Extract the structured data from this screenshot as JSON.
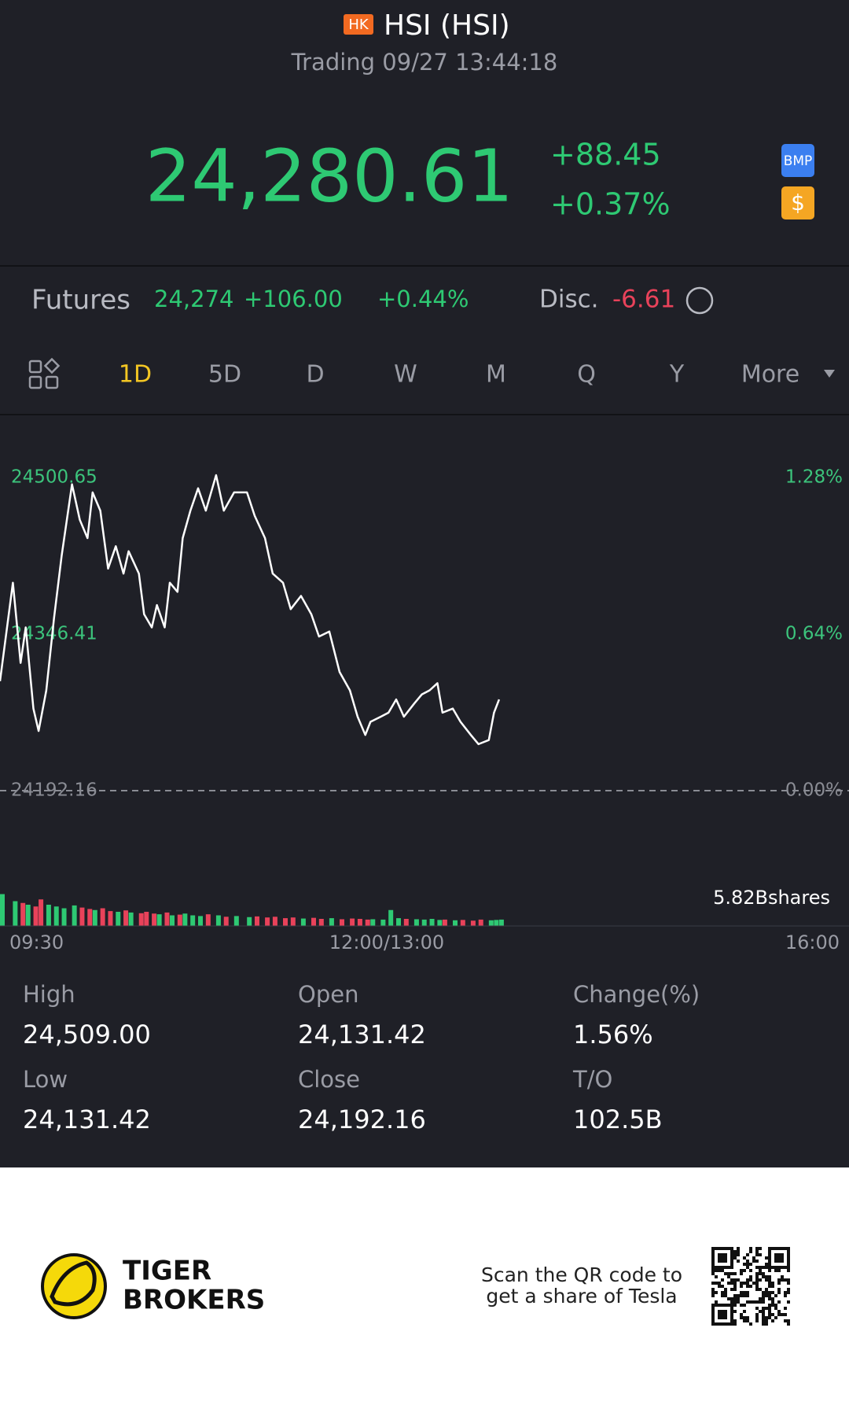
{
  "header": {
    "market": "HK",
    "title": "HSI (HSI)",
    "status": "Trading 09/27 13:44:18"
  },
  "quote": {
    "price": "24,280.61",
    "change": "+88.45",
    "change_pct": "+0.37%",
    "badge_1": "BMP",
    "badge_2": "$"
  },
  "futures": {
    "label": "Futures",
    "price": "24,274",
    "change": "+106.00",
    "change_pct": "+0.44%",
    "disc_label": "Disc.",
    "disc": "-6.61"
  },
  "tabs": {
    "items": [
      "1D",
      "5D",
      "D",
      "W",
      "M",
      "Q",
      "Y",
      "More"
    ],
    "selected": 0
  },
  "chart_data": {
    "type": "line",
    "color": "#ffffff",
    "x": [
      "09:30",
      "09:35",
      "09:38",
      "09:40",
      "09:43",
      "09:45",
      "09:48",
      "09:51",
      "09:54",
      "09:58",
      "10:01",
      "10:04",
      "10:06",
      "10:09",
      "10:12",
      "10:15",
      "10:18",
      "10:20",
      "10:24",
      "10:26",
      "10:29",
      "10:31",
      "10:34",
      "10:36",
      "10:39",
      "10:41",
      "10:44",
      "10:47",
      "10:50",
      "10:54",
      "10:57",
      "11:01",
      "11:06",
      "11:09",
      "11:13",
      "11:16",
      "11:20",
      "11:23",
      "11:27",
      "11:31",
      "11:34",
      "11:38",
      "11:42",
      "11:46",
      "11:49",
      "11:52",
      "11:54",
      "11:58",
      "13:01",
      "13:04",
      "13:07",
      "13:11",
      "13:14",
      "13:17",
      "13:20",
      "13:22",
      "13:26",
      "13:29",
      "13:33",
      "13:36",
      "13:40",
      "13:42",
      "13:44"
    ],
    "values": [
      24300,
      24397,
      24318,
      24353,
      24273,
      24251,
      24291,
      24362,
      24424,
      24494,
      24459,
      24441,
      24486,
      24468,
      24411,
      24433,
      24406,
      24428,
      24406,
      24366,
      24353,
      24375,
      24353,
      24397,
      24388,
      24441,
      24468,
      24490,
      24468,
      24503,
      24468,
      24486,
      24486,
      24463,
      24441,
      24406,
      24397,
      24371,
      24384,
      24366,
      24344,
      24349,
      24309,
      24291,
      24265,
      24247,
      24260,
      24265,
      24269,
      24282,
      24265,
      24278,
      24287,
      24291,
      24298,
      24269,
      24273,
      24260,
      24247,
      24238,
      24242,
      24269,
      24282
    ],
    "ylim": [
      24192.16,
      24500.65
    ],
    "yticks": [
      24192.16,
      24346.41,
      24500.65
    ],
    "y2lim": [
      0,
      1.28
    ],
    "y2ticks": [
      {
        "value": 0,
        "label": "0.00%"
      },
      {
        "value": 0.64,
        "label": "0.64%"
      },
      {
        "value": 1.28,
        "label": "1.28%"
      }
    ],
    "xticks": [
      "09:30",
      "12:00/13:00",
      "16:00"
    ],
    "volume": [
      90,
      70,
      65,
      60,
      55,
      75,
      60,
      55,
      50,
      58,
      52,
      48,
      45,
      50,
      42,
      40,
      44,
      38,
      36,
      40,
      35,
      33,
      38,
      30,
      32,
      35,
      30,
      28,
      33,
      30,
      26,
      28,
      25,
      27,
      24,
      26,
      22,
      24,
      21,
      23,
      20,
      22,
      19,
      21,
      20,
      18,
      19,
      18,
      45,
      22,
      20,
      19,
      18,
      20,
      17,
      18,
      16,
      17,
      15,
      18,
      16,
      17,
      18
    ],
    "volume_ylim": [
      0,
      100
    ],
    "up_color": "#2ec973",
    "down_color": "#e8425a",
    "volume_label": "5.82Bshares"
  },
  "stats": {
    "labels": [
      "High",
      "Open",
      "Change(%)",
      "Low",
      "Close",
      "T/O"
    ],
    "values": [
      "24,509.00",
      "24,131.42",
      "1.56%",
      "24,131.42",
      "24,192.16",
      "102.5B"
    ]
  },
  "footer": {
    "brand_1": "TIGER",
    "brand_2": "BROKERS",
    "promo_1": "Scan the QR code to",
    "promo_2": "get a share of Tesla"
  }
}
